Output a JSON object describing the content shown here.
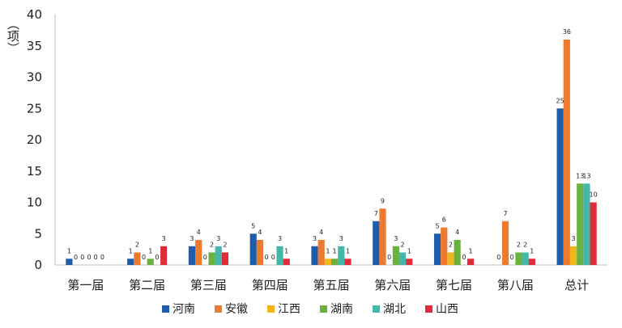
{
  "chart_data": {
    "type": "bar",
    "ylabel": "（项）",
    "ylim": [
      0,
      40
    ],
    "yticks": [
      0,
      5,
      10,
      15,
      20,
      25,
      30,
      35,
      40
    ],
    "grid": false,
    "legend_position": "bottom",
    "categories": [
      "第一届",
      "第二届",
      "第三届",
      "第四届",
      "第五届",
      "第六届",
      "第七届",
      "第八届",
      "总计"
    ],
    "series": [
      {
        "name": "河南",
        "color": "#1f5cab",
        "values": [
          1,
          1,
          3,
          5,
          3,
          7,
          5,
          0,
          25
        ]
      },
      {
        "name": "安徽",
        "color": "#ee7a2e",
        "values": [
          0,
          2,
          4,
          4,
          4,
          9,
          6,
          7,
          36
        ]
      },
      {
        "name": "江西",
        "color": "#f2b61d",
        "values": [
          0,
          0,
          0,
          0,
          1,
          0,
          2,
          0,
          3
        ]
      },
      {
        "name": "湖南",
        "color": "#6ab23f",
        "values": [
          0,
          1,
          2,
          0,
          1,
          3,
          4,
          2,
          13
        ]
      },
      {
        "name": "湖北",
        "color": "#45b7aa",
        "values": [
          0,
          0,
          3,
          3,
          3,
          2,
          0,
          2,
          13
        ]
      },
      {
        "name": "山西",
        "color": "#df2b3a",
        "values": [
          0,
          3,
          2,
          1,
          1,
          1,
          1,
          1,
          10
        ]
      }
    ]
  }
}
